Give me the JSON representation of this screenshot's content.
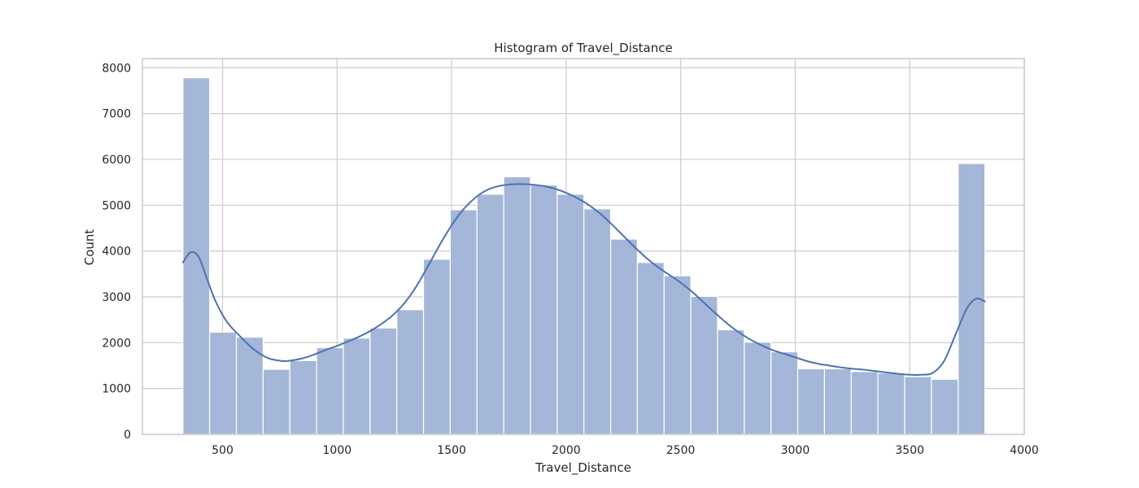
{
  "chart_data": {
    "type": "bar",
    "subtype": "histogram",
    "title": "Histogram of Travel_Distance",
    "xlabel": "Travel_Distance",
    "ylabel": "Count",
    "xlim": [
      150,
      4000
    ],
    "ylim": [
      0,
      8200
    ],
    "xticks": [
      500,
      1000,
      1500,
      2000,
      2500,
      3000,
      3500,
      4000
    ],
    "yticks": [
      0,
      1000,
      2000,
      3000,
      4000,
      5000,
      6000,
      7000,
      8000
    ],
    "xtick_labels": [
      "500",
      "1000",
      "1500",
      "2000",
      "2500",
      "3000",
      "3500",
      "4000"
    ],
    "ytick_labels": [
      "0",
      "1000",
      "2000",
      "3000",
      "4000",
      "5000",
      "6000",
      "7000",
      "8000"
    ],
    "grid": true,
    "bins": [
      {
        "x0": 327.0,
        "x1": 443.7,
        "count": 7780
      },
      {
        "x0": 443.7,
        "x1": 560.4,
        "count": 2230
      },
      {
        "x0": 560.4,
        "x1": 677.1,
        "count": 2120
      },
      {
        "x0": 677.1,
        "x1": 793.8,
        "count": 1420
      },
      {
        "x0": 793.8,
        "x1": 910.5,
        "count": 1610
      },
      {
        "x0": 910.5,
        "x1": 1027.2,
        "count": 1890
      },
      {
        "x0": 1027.2,
        "x1": 1143.9,
        "count": 2100
      },
      {
        "x0": 1143.9,
        "x1": 1260.6,
        "count": 2320
      },
      {
        "x0": 1260.6,
        "x1": 1377.3,
        "count": 2720
      },
      {
        "x0": 1377.3,
        "x1": 1494.0,
        "count": 3820
      },
      {
        "x0": 1494.0,
        "x1": 1610.7,
        "count": 4900
      },
      {
        "x0": 1610.7,
        "x1": 1727.4,
        "count": 5240
      },
      {
        "x0": 1727.4,
        "x1": 1844.1,
        "count": 5620
      },
      {
        "x0": 1844.1,
        "x1": 1960.8,
        "count": 5440
      },
      {
        "x0": 1960.8,
        "x1": 2077.5,
        "count": 5240
      },
      {
        "x0": 2077.5,
        "x1": 2194.2,
        "count": 4920
      },
      {
        "x0": 2194.2,
        "x1": 2310.9,
        "count": 4260
      },
      {
        "x0": 2310.9,
        "x1": 2427.6,
        "count": 3750
      },
      {
        "x0": 2427.6,
        "x1": 2544.3,
        "count": 3460
      },
      {
        "x0": 2544.3,
        "x1": 2661.0,
        "count": 3010
      },
      {
        "x0": 2661.0,
        "x1": 2777.7,
        "count": 2280
      },
      {
        "x0": 2777.7,
        "x1": 2894.4,
        "count": 2010
      },
      {
        "x0": 2894.4,
        "x1": 3011.1,
        "count": 1800
      },
      {
        "x0": 3011.1,
        "x1": 3127.8,
        "count": 1430
      },
      {
        "x0": 3127.8,
        "x1": 3244.5,
        "count": 1430
      },
      {
        "x0": 3244.5,
        "x1": 3361.2,
        "count": 1370
      },
      {
        "x0": 3361.2,
        "x1": 3477.9,
        "count": 1340
      },
      {
        "x0": 3477.9,
        "x1": 3594.6,
        "count": 1260
      },
      {
        "x0": 3594.6,
        "x1": 3711.3,
        "count": 1200
      },
      {
        "x0": 3711.3,
        "x1": 3828.0,
        "count": 5910
      }
    ],
    "kde": {
      "x": [
        327,
        360,
        395,
        430,
        470,
        520,
        580,
        640,
        700,
        760,
        800,
        850,
        900,
        950,
        1000,
        1050,
        1100,
        1150,
        1200,
        1250,
        1300,
        1350,
        1400,
        1450,
        1500,
        1550,
        1600,
        1650,
        1700,
        1750,
        1800,
        1850,
        1900,
        1950,
        2000,
        2050,
        2100,
        2150,
        2200,
        2250,
        2300,
        2350,
        2400,
        2450,
        2500,
        2550,
        2600,
        2650,
        2700,
        2750,
        2800,
        2850,
        2900,
        2950,
        3000,
        3050,
        3100,
        3150,
        3200,
        3250,
        3300,
        3350,
        3400,
        3450,
        3500,
        3550,
        3600,
        3650,
        3700,
        3750,
        3790,
        3828
      ],
      "y": [
        3750,
        3970,
        3880,
        3420,
        2900,
        2450,
        2120,
        1840,
        1660,
        1600,
        1610,
        1660,
        1740,
        1840,
        1930,
        2030,
        2140,
        2270,
        2430,
        2630,
        2900,
        3260,
        3700,
        4150,
        4560,
        4900,
        5150,
        5320,
        5410,
        5450,
        5460,
        5450,
        5420,
        5360,
        5270,
        5150,
        5000,
        4810,
        4580,
        4330,
        4080,
        3850,
        3650,
        3480,
        3310,
        3110,
        2880,
        2650,
        2430,
        2240,
        2080,
        1950,
        1840,
        1760,
        1680,
        1600,
        1540,
        1500,
        1460,
        1430,
        1410,
        1380,
        1350,
        1320,
        1300,
        1300,
        1340,
        1600,
        2180,
        2750,
        2960,
        2900
      ]
    },
    "colors": {
      "bar_fill": "#a4b7d8",
      "bar_edge": "#ffffff",
      "kde_line": "#4c72b0",
      "grid": "#cccccc",
      "axes_frame": "#cccccc",
      "text": "#262626"
    }
  }
}
